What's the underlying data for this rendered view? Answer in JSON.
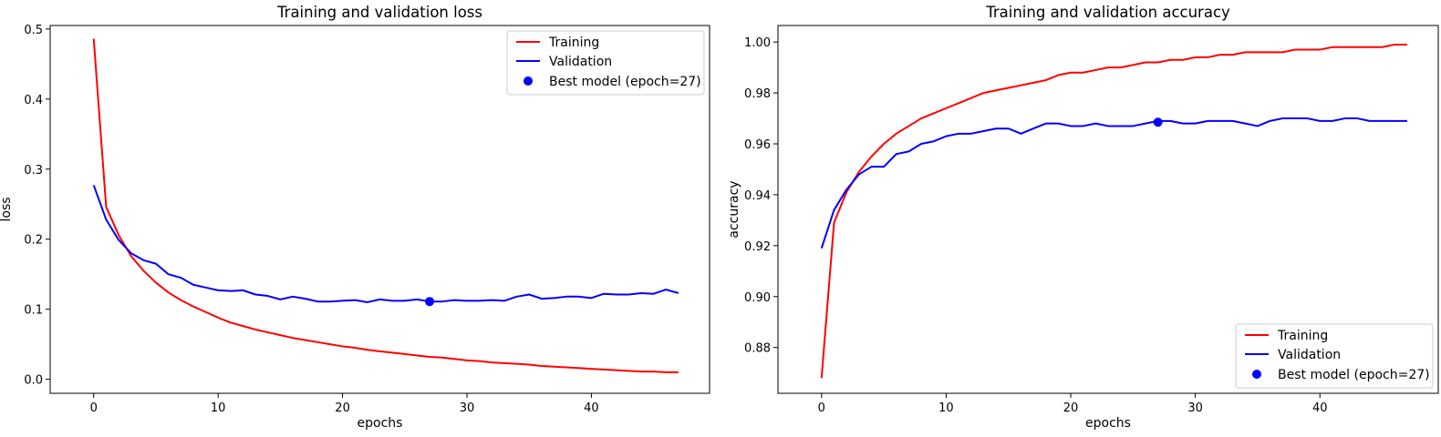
{
  "chart_data": [
    {
      "type": "line",
      "title": "Training and validation loss",
      "xlabel": "epochs",
      "ylabel": "loss",
      "xlim": [
        -3.5,
        49.5
      ],
      "ylim": [
        -0.02,
        0.505
      ],
      "xticks": [
        0,
        10,
        20,
        30,
        40
      ],
      "yticks": [
        0.0,
        0.1,
        0.2,
        0.3,
        0.4,
        0.5
      ],
      "ytick_labels": [
        "0.0",
        "0.1",
        "0.2",
        "0.3",
        "0.4",
        "0.5"
      ],
      "grid": false,
      "legend_position": "upper right",
      "series": [
        {
          "name": "Training",
          "color": "#ff0000",
          "x": [
            0,
            1,
            2,
            3,
            4,
            5,
            6,
            7,
            8,
            9,
            10,
            11,
            12,
            13,
            14,
            15,
            16,
            17,
            18,
            19,
            20,
            21,
            22,
            23,
            24,
            25,
            26,
            27,
            28,
            29,
            30,
            31,
            32,
            33,
            34,
            35,
            36,
            37,
            38,
            39,
            40,
            41,
            42,
            43,
            44,
            45,
            46,
            47
          ],
          "values": [
            0.486,
            0.246,
            0.206,
            0.176,
            0.155,
            0.138,
            0.124,
            0.113,
            0.104,
            0.096,
            0.088,
            0.081,
            0.076,
            0.071,
            0.067,
            0.063,
            0.059,
            0.056,
            0.053,
            0.05,
            0.047,
            0.045,
            0.042,
            0.04,
            0.038,
            0.036,
            0.034,
            0.032,
            0.031,
            0.029,
            0.027,
            0.026,
            0.024,
            0.023,
            0.022,
            0.021,
            0.019,
            0.018,
            0.017,
            0.016,
            0.015,
            0.014,
            0.013,
            0.012,
            0.011,
            0.011,
            0.01,
            0.01
          ]
        },
        {
          "name": "Validation",
          "color": "#0000ff",
          "x": [
            0,
            1,
            2,
            3,
            4,
            5,
            6,
            7,
            8,
            9,
            10,
            11,
            12,
            13,
            14,
            15,
            16,
            17,
            18,
            19,
            20,
            21,
            22,
            23,
            24,
            25,
            26,
            27,
            28,
            29,
            30,
            31,
            32,
            33,
            34,
            35,
            36,
            37,
            38,
            39,
            40,
            41,
            42,
            43,
            44,
            45,
            46,
            47
          ],
          "values": [
            0.277,
            0.228,
            0.199,
            0.18,
            0.17,
            0.165,
            0.15,
            0.145,
            0.135,
            0.131,
            0.127,
            0.126,
            0.127,
            0.121,
            0.119,
            0.114,
            0.118,
            0.115,
            0.111,
            0.111,
            0.112,
            0.113,
            0.11,
            0.114,
            0.112,
            0.112,
            0.114,
            0.111,
            0.111,
            0.113,
            0.112,
            0.112,
            0.113,
            0.112,
            0.118,
            0.121,
            0.115,
            0.116,
            0.118,
            0.118,
            0.116,
            0.122,
            0.121,
            0.121,
            0.123,
            0.122,
            0.128,
            0.123
          ]
        }
      ],
      "best_model": {
        "name": "Best model (epoch=27)",
        "epoch": 27,
        "value": 0.111,
        "color": "#0000ff"
      }
    },
    {
      "type": "line",
      "title": "Training and validation accuracy",
      "xlabel": "epochs",
      "ylabel": "accuracy",
      "xlim": [
        -3.5,
        49.5
      ],
      "ylim": [
        0.862,
        1.0065
      ],
      "xticks": [
        0,
        10,
        20,
        30,
        40
      ],
      "yticks": [
        0.88,
        0.9,
        0.92,
        0.94,
        0.96,
        0.98,
        1.0
      ],
      "ytick_labels": [
        "0.88",
        "0.90",
        "0.92",
        "0.94",
        "0.96",
        "0.98",
        "1.00"
      ],
      "grid": false,
      "legend_position": "lower right",
      "series": [
        {
          "name": "Training",
          "color": "#ff0000",
          "x": [
            0,
            1,
            2,
            3,
            4,
            5,
            6,
            7,
            8,
            9,
            10,
            11,
            12,
            13,
            14,
            15,
            16,
            17,
            18,
            19,
            20,
            21,
            22,
            23,
            24,
            25,
            26,
            27,
            28,
            29,
            30,
            31,
            32,
            33,
            34,
            35,
            36,
            37,
            38,
            39,
            40,
            41,
            42,
            43,
            44,
            45,
            46,
            47
          ],
          "values": [
            0.868,
            0.929,
            0.941,
            0.949,
            0.955,
            0.96,
            0.964,
            0.967,
            0.97,
            0.972,
            0.974,
            0.976,
            0.978,
            0.98,
            0.981,
            0.982,
            0.983,
            0.984,
            0.985,
            0.987,
            0.988,
            0.988,
            0.989,
            0.99,
            0.99,
            0.991,
            0.992,
            0.992,
            0.993,
            0.993,
            0.994,
            0.994,
            0.995,
            0.995,
            0.996,
            0.996,
            0.996,
            0.996,
            0.997,
            0.997,
            0.997,
            0.998,
            0.998,
            0.998,
            0.998,
            0.998,
            0.999,
            0.999
          ]
        },
        {
          "name": "Validation",
          "color": "#0000ff",
          "x": [
            0,
            1,
            2,
            3,
            4,
            5,
            6,
            7,
            8,
            9,
            10,
            11,
            12,
            13,
            14,
            15,
            16,
            17,
            18,
            19,
            20,
            21,
            22,
            23,
            24,
            25,
            26,
            27,
            28,
            29,
            30,
            31,
            32,
            33,
            34,
            35,
            36,
            37,
            38,
            39,
            40,
            41,
            42,
            43,
            44,
            45,
            46,
            47
          ],
          "values": [
            0.919,
            0.934,
            0.942,
            0.948,
            0.951,
            0.951,
            0.956,
            0.957,
            0.96,
            0.961,
            0.963,
            0.964,
            0.964,
            0.965,
            0.966,
            0.966,
            0.964,
            0.966,
            0.968,
            0.968,
            0.967,
            0.967,
            0.968,
            0.967,
            0.967,
            0.967,
            0.968,
            0.969,
            0.969,
            0.968,
            0.968,
            0.969,
            0.969,
            0.969,
            0.968,
            0.967,
            0.969,
            0.97,
            0.97,
            0.97,
            0.969,
            0.969,
            0.97,
            0.97,
            0.969,
            0.969,
            0.969,
            0.969
          ]
        }
      ],
      "best_model": {
        "name": "Best model (epoch=27)",
        "epoch": 27,
        "value": 0.9685,
        "color": "#0000ff"
      }
    }
  ]
}
